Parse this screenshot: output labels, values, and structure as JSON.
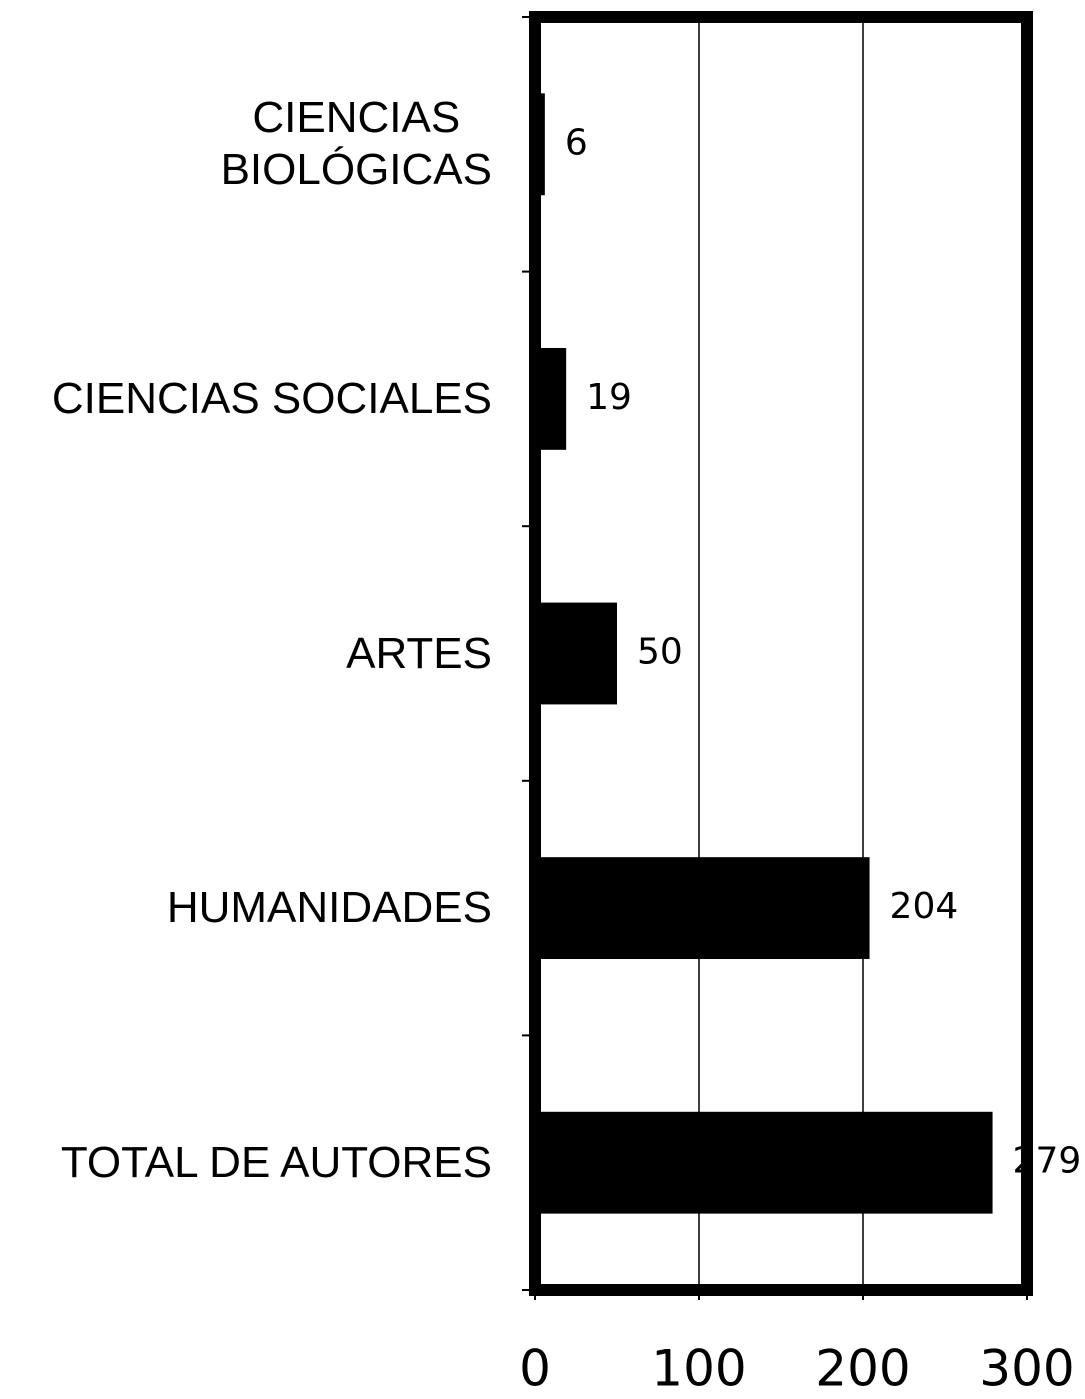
{
  "chart_data": {
    "type": "barh",
    "categories": [
      "CIENCIAS\nBIOLÓGICAS",
      "CIENCIAS SOCIALES",
      "ARTES",
      "HUMANIDADES",
      "TOTAL DE AUTORES"
    ],
    "values": [
      6,
      19,
      50,
      204,
      279
    ],
    "color": "#000000",
    "xlim": [
      0,
      300
    ],
    "xticks": [
      0,
      100,
      200,
      300
    ],
    "grid": true
  }
}
